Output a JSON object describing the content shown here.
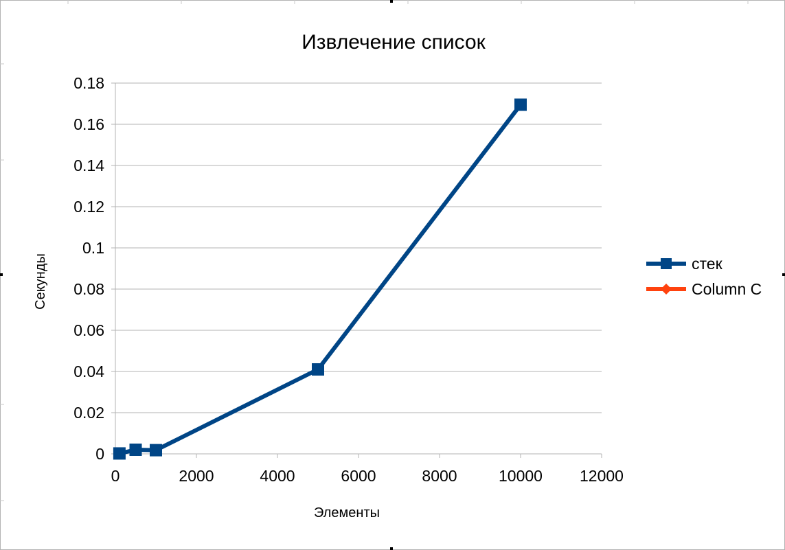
{
  "chart_data": {
    "type": "line",
    "title": "Извлечение список",
    "xlabel": "Элементы",
    "ylabel": "Секунды",
    "xlim": [
      0,
      12000
    ],
    "ylim": [
      0,
      0.18
    ],
    "xticks": [
      "0",
      "2000",
      "4000",
      "6000",
      "8000",
      "10000",
      "12000"
    ],
    "yticks": [
      "0",
      "0.02",
      "0.04",
      "0.06",
      "0.08",
      "0.1",
      "0.12",
      "0.14",
      "0.16",
      "0.18"
    ],
    "grid": "horizontal",
    "legend_position": "right",
    "series": [
      {
        "name": "стек",
        "color": "#004586",
        "marker": "square",
        "x": [
          100,
          500,
          1000,
          5000,
          10000
        ],
        "y": [
          0.0002,
          0.002,
          0.0018,
          0.041,
          0.1695
        ]
      },
      {
        "name": "Column C",
        "color": "#ff420e",
        "marker": "diamond",
        "x": [],
        "y": []
      }
    ]
  }
}
